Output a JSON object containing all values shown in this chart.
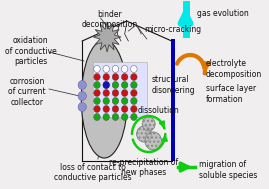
{
  "bg_color": "#f0eeee",
  "colors": {
    "electrode_fill": "#c0c0c0",
    "electrode_outline": "#222222",
    "burst_fill": "#aaaaaa",
    "burst_outline": "#444444",
    "blue_bar": "#0000bb",
    "cyan_arrow": "#00e8e8",
    "orange_arrow": "#e07800",
    "green_arrow": "#10cc10",
    "crystal_bg": "#e0e0ff",
    "crystal_white": "#ffffff",
    "crystal_red": "#cc1111",
    "crystal_green": "#11aa11",
    "crystal_blue": "#1111cc",
    "particle_fill": "#c0c0c0",
    "particle_outline": "#888888",
    "purple_circle": "#9090cc",
    "house_line": "#111111",
    "text_color": "#111111",
    "crack_line": "#111111"
  },
  "labels": {
    "binder_decomposition": "binder\ndecomposition",
    "oxidation": "oxidation\nof conductive\nparticles",
    "corrosion": "corrosion\nof current\ncollector",
    "micro_cracking": "micro-cracking",
    "structural_disordering": "structural\ndisordering",
    "dissolution": "dissolution",
    "loss_contact": "loss of contact to\nconductive particles",
    "reprecipitation": "re-precipitation of\nnew phases",
    "gas_evolution": "gas evolution",
    "electrolyte_decomposition": "electrolyte\ndecomposition",
    "surface_layer": "surface layer\nformation",
    "migration": "migration of\nsoluble species"
  },
  "fontsize": 5.5
}
